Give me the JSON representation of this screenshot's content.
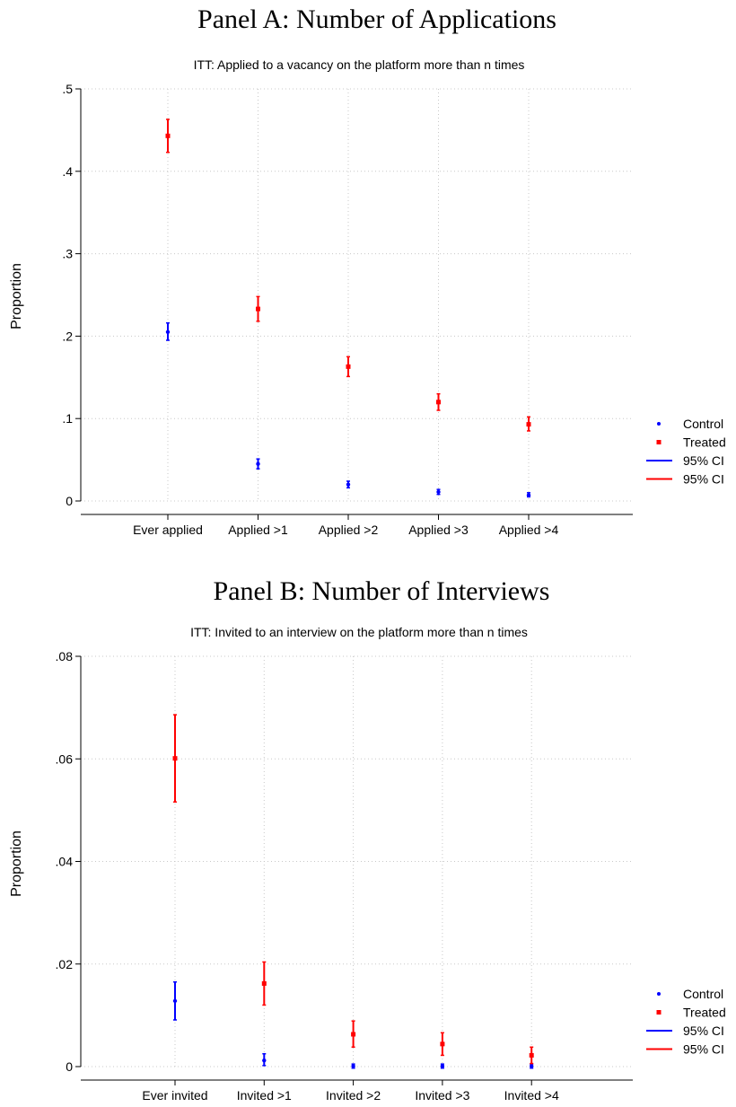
{
  "chart_data": [
    {
      "type": "scatter",
      "title": "Panel A: Number of Applications",
      "subtitle": "ITT: Applied to a vacancy on the platform more than n times",
      "xlabel": "",
      "ylabel": "Proportion",
      "categories": [
        "Ever applied",
        "Applied >1",
        "Applied >2",
        "Applied >3",
        "Applied >4"
      ],
      "ylim": [
        0,
        0.5
      ],
      "yticks": [
        0,
        0.1,
        0.2,
        0.3,
        0.4,
        0.5
      ],
      "ytick_labels": [
        "0",
        ".1",
        ".2",
        ".3",
        ".4",
        ".5"
      ],
      "grid": true,
      "legend_position": "right",
      "series": [
        {
          "name": "Control",
          "marker": "circle",
          "color": "#0000ff",
          "values": [
            0.205,
            0.045,
            0.02,
            0.011,
            0.007
          ],
          "ci_low": [
            0.195,
            0.039,
            0.016,
            0.008,
            0.005
          ],
          "ci_high": [
            0.216,
            0.051,
            0.024,
            0.014,
            0.01
          ]
        },
        {
          "name": "Treated",
          "marker": "square",
          "color": "#ff0000",
          "values": [
            0.443,
            0.233,
            0.163,
            0.12,
            0.093
          ],
          "ci_low": [
            0.423,
            0.218,
            0.151,
            0.11,
            0.085
          ],
          "ci_high": [
            0.463,
            0.248,
            0.175,
            0.13,
            0.102
          ]
        }
      ],
      "legend": [
        {
          "label": "Control",
          "kind": "dot",
          "color": "#0000ff"
        },
        {
          "label": "Treated",
          "kind": "square",
          "color": "#ff0000"
        },
        {
          "label": "95% CI",
          "kind": "line",
          "color": "#0000ff"
        },
        {
          "label": "95% CI",
          "kind": "line",
          "color": "#ff0000"
        }
      ]
    },
    {
      "type": "scatter",
      "title": "Panel B: Number of Interviews",
      "subtitle": "ITT: Invited to an interview on the platform more than n times",
      "xlabel": "",
      "ylabel": "Proportion",
      "categories": [
        "Ever invited",
        "Invited >1",
        "Invited >2",
        "Invited >3",
        "Invited >4"
      ],
      "ylim": [
        0,
        0.08
      ],
      "yticks": [
        0,
        0.02,
        0.04,
        0.06,
        0.08
      ],
      "ytick_labels": [
        "0",
        ".02",
        ".04",
        ".06",
        ".08"
      ],
      "grid": true,
      "legend_position": "right",
      "series": [
        {
          "name": "Control",
          "marker": "circle",
          "color": "#0000ff",
          "values": [
            0.0128,
            0.0012,
            0.0001,
            0.0001,
            0.0001
          ],
          "ci_low": [
            0.0091,
            0.0002,
            -0.0003,
            -0.0003,
            -0.0003
          ],
          "ci_high": [
            0.0165,
            0.0025,
            0.0005,
            0.0005,
            0.0005
          ]
        },
        {
          "name": "Treated",
          "marker": "square",
          "color": "#ff0000",
          "values": [
            0.0601,
            0.0162,
            0.0063,
            0.0044,
            0.0022
          ],
          "ci_low": [
            0.0516,
            0.012,
            0.0038,
            0.0022,
            0.0006
          ],
          "ci_high": [
            0.0686,
            0.0204,
            0.0089,
            0.0066,
            0.0038
          ]
        }
      ],
      "legend": [
        {
          "label": "Control",
          "kind": "dot",
          "color": "#0000ff"
        },
        {
          "label": "Treated",
          "kind": "square",
          "color": "#ff0000"
        },
        {
          "label": "95% CI",
          "kind": "line",
          "color": "#0000ff"
        },
        {
          "label": "95% CI",
          "kind": "line",
          "color": "#ff0000"
        }
      ]
    }
  ]
}
